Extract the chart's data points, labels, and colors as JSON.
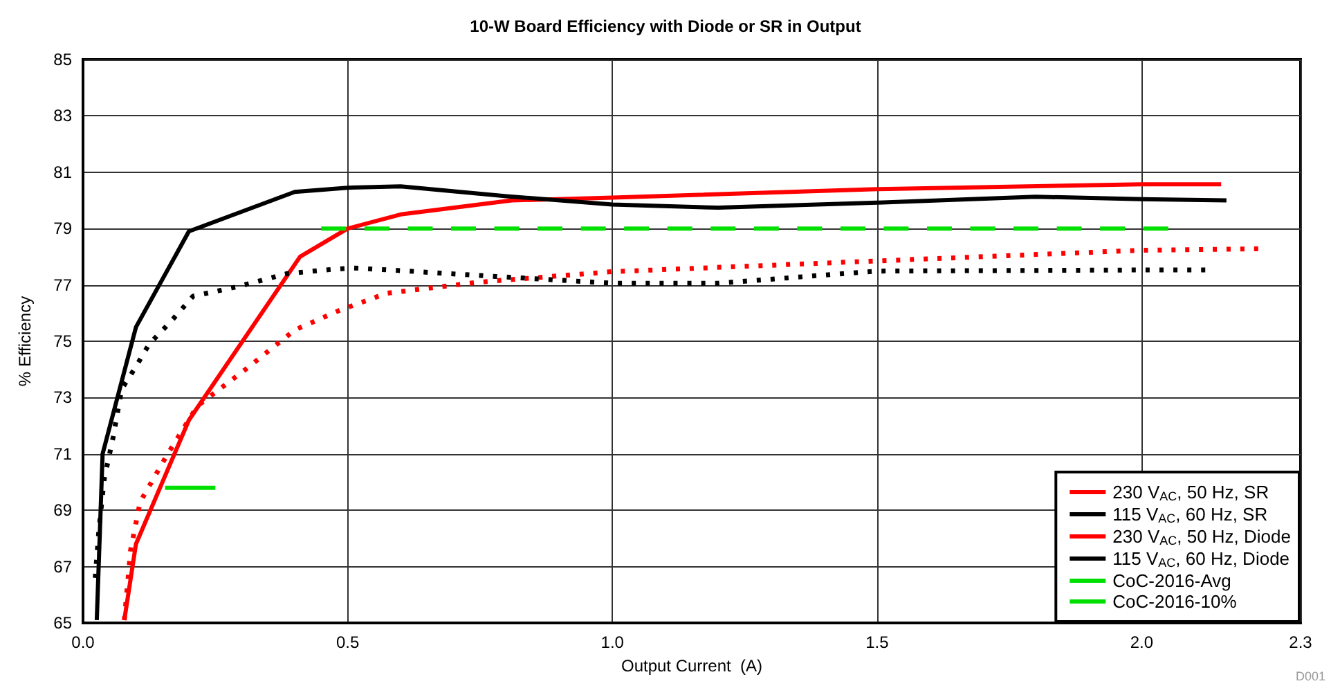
{
  "chart_data": {
    "type": "line",
    "title": "10-W Board Efficiency with Diode or SR in Output",
    "xlabel": "Output Current  (A)",
    "ylabel": "% Efficiency",
    "xlim": [
      0,
      2.3
    ],
    "xticks": [
      {
        "value": 0,
        "label": "0.0"
      },
      0.5,
      {
        "value": 1,
        "label": "1.0"
      },
      1.5,
      {
        "value": 2,
        "label": "2.0"
      },
      2.3
    ],
    "ylim": [
      65,
      85
    ],
    "yticks": [
      65,
      67,
      69,
      71,
      73,
      75,
      77,
      79,
      81,
      83,
      85
    ],
    "grid": true,
    "legend": "bottom right",
    "marker": "none",
    "annotations": [
      "D001"
    ],
    "series": [
      {
        "name": "230 V$_{AC}$, 50 Hz, SR",
        "color": "#ff0000",
        "line_style": "solid",
        "x": [
          0.078,
          0.1,
          0.2,
          0.41,
          0.5,
          0.6,
          0.81,
          1.0,
          1.5,
          2.0,
          2.15
        ],
        "values": [
          65.1,
          67.8,
          72.2,
          78.0,
          79.0,
          79.5,
          80.0,
          80.1,
          80.4,
          80.57,
          80.57
        ]
      },
      {
        "name": "115 V$_{AC}$, 60 Hz, SR",
        "color": "#000000",
        "line_style": "solid",
        "x": [
          0.026,
          0.037,
          0.1,
          0.2,
          0.4,
          0.5,
          0.6,
          0.8,
          1.0,
          1.2,
          1.5,
          1.8,
          2.0,
          2.16
        ],
        "values": [
          65.1,
          71.0,
          75.5,
          78.9,
          80.3,
          80.45,
          80.5,
          80.15,
          79.85,
          79.74,
          79.92,
          80.13,
          80.04,
          80.0
        ]
      },
      {
        "name": "230 V$_{AC}$, 50 Hz, Diode",
        "color": "#ff0000",
        "line_style": "dotted",
        "x": [
          0.078,
          0.09,
          0.108,
          0.16,
          0.216,
          0.307,
          0.4,
          0.485,
          0.573,
          0.66,
          0.75,
          1.0,
          1.5,
          2.0,
          2.22
        ],
        "values": [
          65.1,
          67.6,
          69.3,
          71.0,
          72.7,
          74.0,
          75.4,
          76.1,
          76.7,
          76.9,
          77.1,
          77.47,
          77.85,
          78.23,
          78.28
        ]
      },
      {
        "name": "115 V$_{AC}$, 60 Hz, Diode",
        "color": "#000000",
        "line_style": "dotted",
        "x": [
          0.023,
          0.03,
          0.04,
          0.057,
          0.073,
          0.1,
          0.125,
          0.166,
          0.208,
          0.295,
          0.385,
          0.47,
          0.51,
          0.607,
          0.69,
          0.78,
          1.0,
          1.2,
          1.5,
          2.0,
          2.12
        ],
        "values": [
          66.6,
          68.3,
          70.1,
          71.6,
          73.3,
          74.1,
          74.9,
          75.7,
          76.6,
          76.95,
          77.4,
          77.55,
          77.6,
          77.5,
          77.4,
          77.3,
          77.06,
          77.06,
          77.49,
          77.53,
          77.53
        ]
      },
      {
        "name": "CoC-2016-Avg",
        "color": "#00e000",
        "line_style": "dashed",
        "x": [
          0.45,
          2.05
        ],
        "values": [
          79,
          79
        ]
      },
      {
        "name": "CoC-2016-10%",
        "color": "#00e000",
        "line_style": "solid",
        "x": [
          0.155,
          0.25
        ],
        "values": [
          69.8,
          69.8
        ]
      }
    ]
  }
}
